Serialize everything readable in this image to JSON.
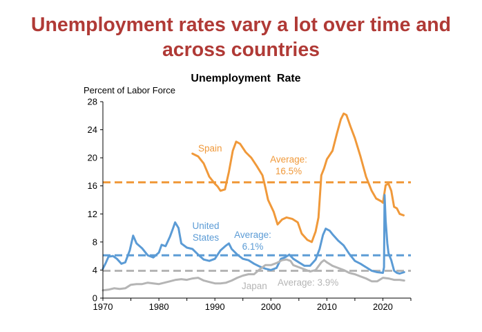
{
  "slide": {
    "headline": "Unemployment rates vary a lot over time and across countries"
  },
  "chart_data": {
    "type": "line",
    "title": "Unemployment  Rate",
    "ylabel": "Percent of Labor Force",
    "xlabel": "",
    "xlim": [
      1970,
      2025
    ],
    "ylim": [
      0,
      28
    ],
    "xticks": [
      "1970",
      "1980",
      "1990",
      "2000",
      "2010",
      "2020"
    ],
    "yticks": [
      "0",
      "4",
      "8",
      "12",
      "16",
      "20",
      "24",
      "28"
    ],
    "grid": false,
    "legend": "none (series labeled directly)",
    "colors": {
      "spain": "#f0993a",
      "us": "#5b9bd5",
      "japan": "#b5b5b5",
      "headline": "#b03a36"
    },
    "series": [
      {
        "name": "Spain",
        "color": "#f0993a",
        "points": [
          [
            1986.0,
            20.6
          ],
          [
            1987.0,
            20.2
          ],
          [
            1988.0,
            19.2
          ],
          [
            1989.0,
            17.3
          ],
          [
            1990.0,
            16.3
          ],
          [
            1990.5,
            15.9
          ],
          [
            1991.0,
            15.3
          ],
          [
            1991.8,
            15.5
          ],
          [
            1992.5,
            18.0
          ],
          [
            1993.2,
            21.0
          ],
          [
            1993.8,
            22.3
          ],
          [
            1994.5,
            22.0
          ],
          [
            1995.5,
            20.8
          ],
          [
            1996.5,
            20.0
          ],
          [
            1997.5,
            18.8
          ],
          [
            1998.5,
            17.5
          ],
          [
            1999.0,
            15.8
          ],
          [
            1999.5,
            14.0
          ],
          [
            2000.5,
            12.3
          ],
          [
            2001.2,
            10.5
          ],
          [
            2002.0,
            11.2
          ],
          [
            2002.8,
            11.5
          ],
          [
            2003.8,
            11.3
          ],
          [
            2004.8,
            10.8
          ],
          [
            2005.5,
            9.2
          ],
          [
            2006.5,
            8.3
          ],
          [
            2007.3,
            8.0
          ],
          [
            2008.0,
            9.5
          ],
          [
            2008.5,
            11.5
          ],
          [
            2009.0,
            17.5
          ],
          [
            2009.5,
            18.5
          ],
          [
            2010.0,
            19.8
          ],
          [
            2011.0,
            21.0
          ],
          [
            2011.8,
            23.5
          ],
          [
            2012.5,
            25.5
          ],
          [
            2013.0,
            26.3
          ],
          [
            2013.5,
            26.1
          ],
          [
            2014.2,
            24.5
          ],
          [
            2015.0,
            22.8
          ],
          [
            2016.0,
            20.2
          ],
          [
            2017.0,
            17.3
          ],
          [
            2018.0,
            15.3
          ],
          [
            2018.8,
            14.2
          ],
          [
            2019.7,
            13.8
          ],
          [
            2020.0,
            13.6
          ],
          [
            2020.5,
            16.1
          ],
          [
            2021.0,
            16.3
          ],
          [
            2021.5,
            15.3
          ],
          [
            2022.0,
            13.0
          ],
          [
            2022.5,
            12.8
          ],
          [
            2023.0,
            12.0
          ],
          [
            2023.7,
            11.8
          ]
        ]
      },
      {
        "name": "United States",
        "color": "#5b9bd5",
        "points": [
          [
            1970.0,
            4.2
          ],
          [
            1970.5,
            5.0
          ],
          [
            1971.0,
            5.9
          ],
          [
            1971.8,
            6.0
          ],
          [
            1972.5,
            5.6
          ],
          [
            1973.3,
            4.9
          ],
          [
            1974.0,
            5.1
          ],
          [
            1974.8,
            6.8
          ],
          [
            1975.4,
            8.9
          ],
          [
            1976.0,
            7.8
          ],
          [
            1977.0,
            7.1
          ],
          [
            1978.0,
            6.1
          ],
          [
            1979.0,
            5.8
          ],
          [
            1980.0,
            6.5
          ],
          [
            1980.5,
            7.6
          ],
          [
            1981.2,
            7.4
          ],
          [
            1982.0,
            8.8
          ],
          [
            1982.5,
            9.9
          ],
          [
            1982.9,
            10.8
          ],
          [
            1983.5,
            10.0
          ],
          [
            1984.0,
            7.8
          ],
          [
            1985.0,
            7.2
          ],
          [
            1986.0,
            7.0
          ],
          [
            1987.0,
            6.2
          ],
          [
            1988.0,
            5.5
          ],
          [
            1989.0,
            5.3
          ],
          [
            1990.0,
            5.6
          ],
          [
            1991.0,
            6.8
          ],
          [
            1992.0,
            7.5
          ],
          [
            1992.5,
            7.8
          ],
          [
            1993.0,
            7.0
          ],
          [
            1994.0,
            6.2
          ],
          [
            1995.0,
            5.6
          ],
          [
            1996.0,
            5.4
          ],
          [
            1997.0,
            4.9
          ],
          [
            1998.0,
            4.5
          ],
          [
            1999.0,
            4.2
          ],
          [
            2000.0,
            4.0
          ],
          [
            2001.0,
            4.3
          ],
          [
            2001.8,
            5.6
          ],
          [
            2002.5,
            5.8
          ],
          [
            2003.3,
            6.2
          ],
          [
            2004.0,
            5.6
          ],
          [
            2005.0,
            5.1
          ],
          [
            2006.0,
            4.6
          ],
          [
            2007.0,
            4.6
          ],
          [
            2008.0,
            5.5
          ],
          [
            2008.7,
            7.0
          ],
          [
            2009.3,
            9.0
          ],
          [
            2009.8,
            9.9
          ],
          [
            2010.5,
            9.6
          ],
          [
            2011.0,
            9.1
          ],
          [
            2012.0,
            8.2
          ],
          [
            2013.0,
            7.5
          ],
          [
            2014.0,
            6.3
          ],
          [
            2015.0,
            5.3
          ],
          [
            2016.0,
            4.9
          ],
          [
            2017.0,
            4.4
          ],
          [
            2018.0,
            3.9
          ],
          [
            2019.0,
            3.7
          ],
          [
            2020.0,
            3.6
          ],
          [
            2020.2,
            4.4
          ],
          [
            2020.3,
            14.7
          ],
          [
            2020.5,
            11.0
          ],
          [
            2020.8,
            7.8
          ],
          [
            2021.0,
            6.4
          ],
          [
            2021.5,
            5.4
          ],
          [
            2022.0,
            3.9
          ],
          [
            2022.5,
            3.6
          ],
          [
            2023.0,
            3.5
          ],
          [
            2023.8,
            3.7
          ]
        ]
      },
      {
        "name": "Japan",
        "color": "#b5b5b5",
        "points": [
          [
            1970.0,
            1.1
          ],
          [
            1971.0,
            1.2
          ],
          [
            1972.0,
            1.4
          ],
          [
            1973.0,
            1.3
          ],
          [
            1974.0,
            1.4
          ],
          [
            1975.0,
            1.9
          ],
          [
            1976.0,
            2.0
          ],
          [
            1977.0,
            2.0
          ],
          [
            1978.0,
            2.2
          ],
          [
            1979.0,
            2.1
          ],
          [
            1980.0,
            2.0
          ],
          [
            1981.0,
            2.2
          ],
          [
            1982.0,
            2.4
          ],
          [
            1983.0,
            2.6
          ],
          [
            1984.0,
            2.7
          ],
          [
            1985.0,
            2.6
          ],
          [
            1986.0,
            2.8
          ],
          [
            1987.0,
            2.9
          ],
          [
            1988.0,
            2.5
          ],
          [
            1989.0,
            2.3
          ],
          [
            1990.0,
            2.1
          ],
          [
            1991.0,
            2.1
          ],
          [
            1992.0,
            2.2
          ],
          [
            1993.0,
            2.5
          ],
          [
            1994.0,
            2.9
          ],
          [
            1995.0,
            3.2
          ],
          [
            1996.0,
            3.4
          ],
          [
            1997.0,
            3.4
          ],
          [
            1998.0,
            4.1
          ],
          [
            1999.0,
            4.7
          ],
          [
            2000.0,
            4.7
          ],
          [
            2001.0,
            5.0
          ],
          [
            2002.0,
            5.4
          ],
          [
            2002.8,
            5.5
          ],
          [
            2003.5,
            5.3
          ],
          [
            2004.0,
            4.7
          ],
          [
            2005.0,
            4.4
          ],
          [
            2006.0,
            4.1
          ],
          [
            2007.0,
            3.8
          ],
          [
            2008.0,
            4.0
          ],
          [
            2009.0,
            5.1
          ],
          [
            2009.5,
            5.4
          ],
          [
            2010.0,
            5.1
          ],
          [
            2011.0,
            4.6
          ],
          [
            2012.0,
            4.3
          ],
          [
            2013.0,
            4.0
          ],
          [
            2014.0,
            3.6
          ],
          [
            2015.0,
            3.4
          ],
          [
            2016.0,
            3.1
          ],
          [
            2017.0,
            2.8
          ],
          [
            2018.0,
            2.4
          ],
          [
            2019.0,
            2.4
          ],
          [
            2020.0,
            2.9
          ],
          [
            2021.0,
            2.8
          ],
          [
            2022.0,
            2.6
          ],
          [
            2023.0,
            2.6
          ],
          [
            2023.8,
            2.5
          ]
        ]
      }
    ],
    "averages": [
      {
        "series": "Spain",
        "value": 16.5,
        "color": "#f0993a"
      },
      {
        "series": "United States",
        "value": 6.1,
        "color": "#5b9bd5"
      },
      {
        "series": "Japan",
        "value": 3.9,
        "color": "#b5b5b5"
      }
    ],
    "annotations": {
      "spain_label": "Spain",
      "spain_avg_line1": "Average:",
      "spain_avg_line2": "16.5%",
      "us_label_line1": "United",
      "us_label_line2": "States",
      "us_avg_line1": "Average:",
      "us_avg_line2": "6.1%",
      "japan_label": "Japan",
      "japan_avg": "Average: 3.9%"
    }
  }
}
